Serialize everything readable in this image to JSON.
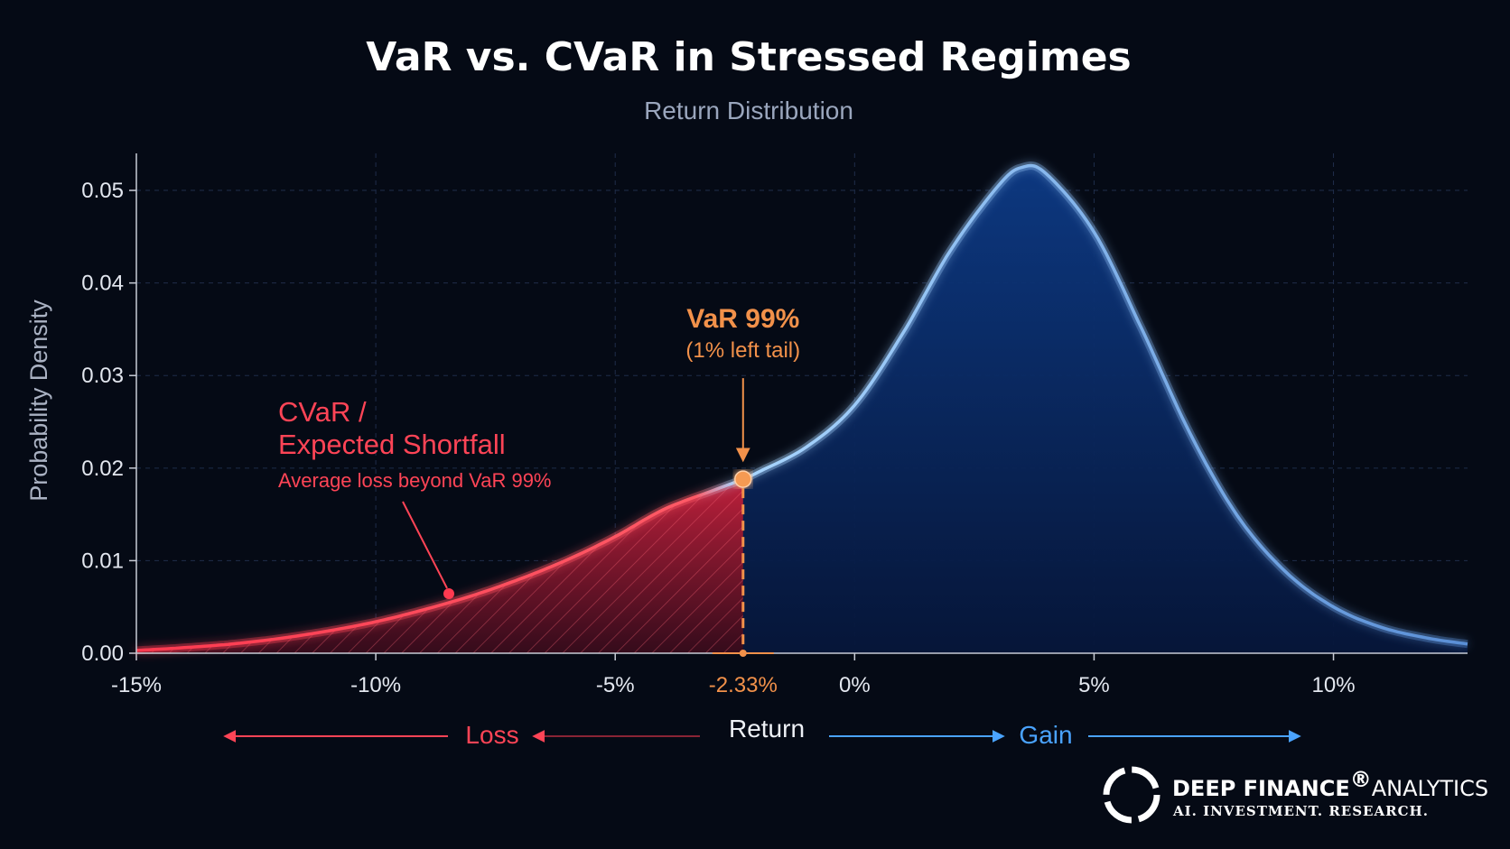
{
  "chart_data": {
    "type": "area",
    "title": "VaR  vs. CVaR in Stressed Regimes",
    "subtitle": "Return Distribution",
    "xlabel": "Return",
    "ylabel": "Probability Density",
    "xlim": [
      -15,
      12.8
    ],
    "ylim": [
      0,
      0.054
    ],
    "x_ticks": [
      "-15%",
      "-10%",
      "-5%",
      "0%",
      "5%",
      "10%"
    ],
    "x_tick_values": [
      -15,
      -10,
      -5,
      0,
      5,
      10
    ],
    "y_ticks": [
      "0.00",
      "0.01",
      "0.02",
      "0.03",
      "0.04",
      "0.05"
    ],
    "y_tick_values": [
      0,
      0.01,
      0.02,
      0.03,
      0.04,
      0.05
    ],
    "grid": true,
    "curve": {
      "x": [
        -15,
        -14,
        -13,
        -12,
        -11,
        -10,
        -9,
        -8,
        -7,
        -6,
        -5,
        -4,
        -3,
        -2.33,
        -2,
        -1,
        0,
        1,
        2,
        3,
        3.5,
        4,
        5,
        6,
        7,
        8,
        9,
        10,
        11,
        12,
        12.8
      ],
      "y": [
        0.0003,
        0.0006,
        0.001,
        0.0016,
        0.0024,
        0.0034,
        0.0047,
        0.0062,
        0.008,
        0.0101,
        0.0126,
        0.0155,
        0.0175,
        0.0188,
        0.0196,
        0.0223,
        0.0268,
        0.0345,
        0.0435,
        0.0505,
        0.0525,
        0.0518,
        0.0455,
        0.035,
        0.0238,
        0.0148,
        0.0088,
        0.005,
        0.0028,
        0.0016,
        0.001
      ]
    },
    "var": {
      "x": -2.33,
      "y": 0.0188,
      "tick_label": "-2.33%",
      "label": "VaR 99%",
      "sublabel": "(1% left tail)"
    },
    "cvar": {
      "label_line1": "CVaR /",
      "label_line2": "Expected Shortfall",
      "sublabel": "Average loss beyond VaR 99%",
      "region": [
        -15,
        -2.33
      ]
    },
    "direction_labels": {
      "loss": "Loss",
      "gain": "Gain"
    },
    "colors": {
      "curve": "#6fb6ff",
      "fill": "#0a2a66",
      "tail": "#ff3048",
      "var": "#f2914a",
      "loss": "#ff4456",
      "gain": "#4aa3ff",
      "background": "#050a15"
    }
  },
  "brand": {
    "name_bold": "DEEP FINANCE",
    "registered": "®",
    "name_light": "ANALYTICS",
    "tagline": "AI. INVESTMENT. RESEARCH."
  }
}
